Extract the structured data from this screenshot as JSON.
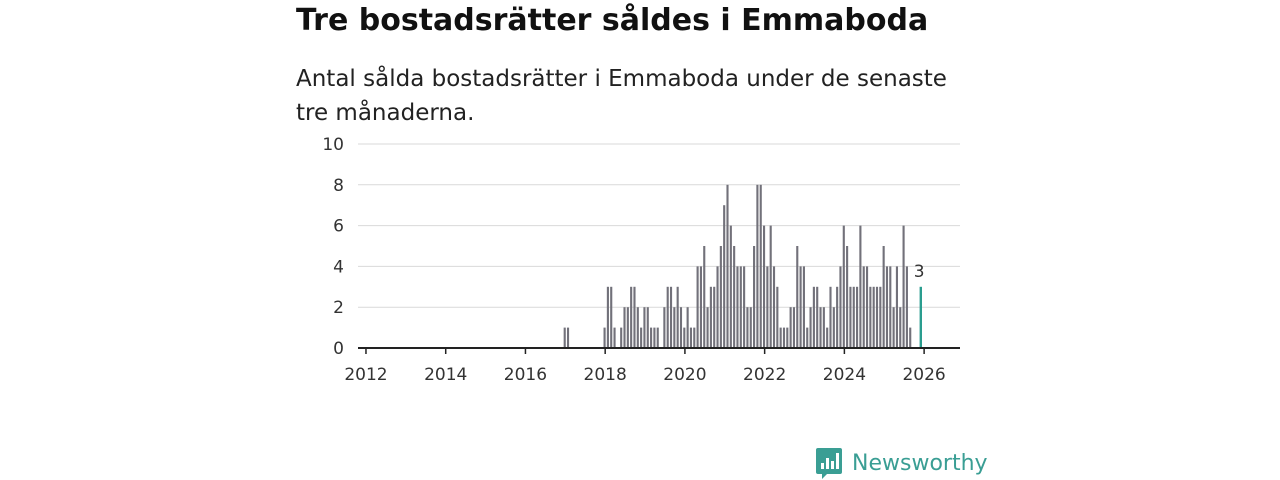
{
  "title": "Tre bostadsrätter såldes i Emmaboda",
  "subtitle": "Antal sålda bostadsrätter i Emmaboda under de senaste tre månaderna.",
  "brand": {
    "name": "Newsworthy",
    "color": "#3a9e94"
  },
  "chart_data": {
    "type": "bar",
    "title": "Tre bostadsrätter såldes i Emmaboda",
    "subtitle": "Antal sålda bostadsrätter i Emmaboda under de senaste tre månaderna.",
    "xlabel": "",
    "ylabel": "",
    "ylim": [
      0,
      10
    ],
    "xlim": [
      2011.8,
      2026.9
    ],
    "yticks": [
      0,
      2,
      4,
      6,
      8,
      10
    ],
    "xticks": [
      2012,
      2014,
      2016,
      2018,
      2020,
      2022,
      2024,
      2026
    ],
    "grid": true,
    "bar_color": "#72717a",
    "highlight_color": "#2a9d8f",
    "start_year": 2017,
    "bar_width_months": 1,
    "values": [
      1,
      1,
      0,
      0,
      0,
      0,
      0,
      0,
      0,
      0,
      0,
      0,
      1,
      3,
      3,
      1,
      0,
      1,
      2,
      2,
      3,
      3,
      2,
      1,
      2,
      2,
      1,
      1,
      1,
      0,
      2,
      3,
      3,
      2,
      3,
      2,
      1,
      2,
      1,
      1,
      4,
      4,
      5,
      2,
      3,
      3,
      4,
      5,
      7,
      8,
      6,
      5,
      4,
      4,
      4,
      2,
      2,
      5,
      8,
      8,
      6,
      4,
      6,
      4,
      3,
      1,
      1,
      1,
      2,
      2,
      5,
      4,
      4,
      1,
      2,
      3,
      3,
      2,
      2,
      1,
      3,
      2,
      3,
      4,
      6,
      5,
      3,
      3,
      3,
      6,
      4,
      4,
      3,
      3,
      3,
      3,
      5,
      4,
      4,
      2,
      4,
      2,
      6,
      4,
      1,
      0,
      0,
      3
    ],
    "highlight_label": "3"
  }
}
